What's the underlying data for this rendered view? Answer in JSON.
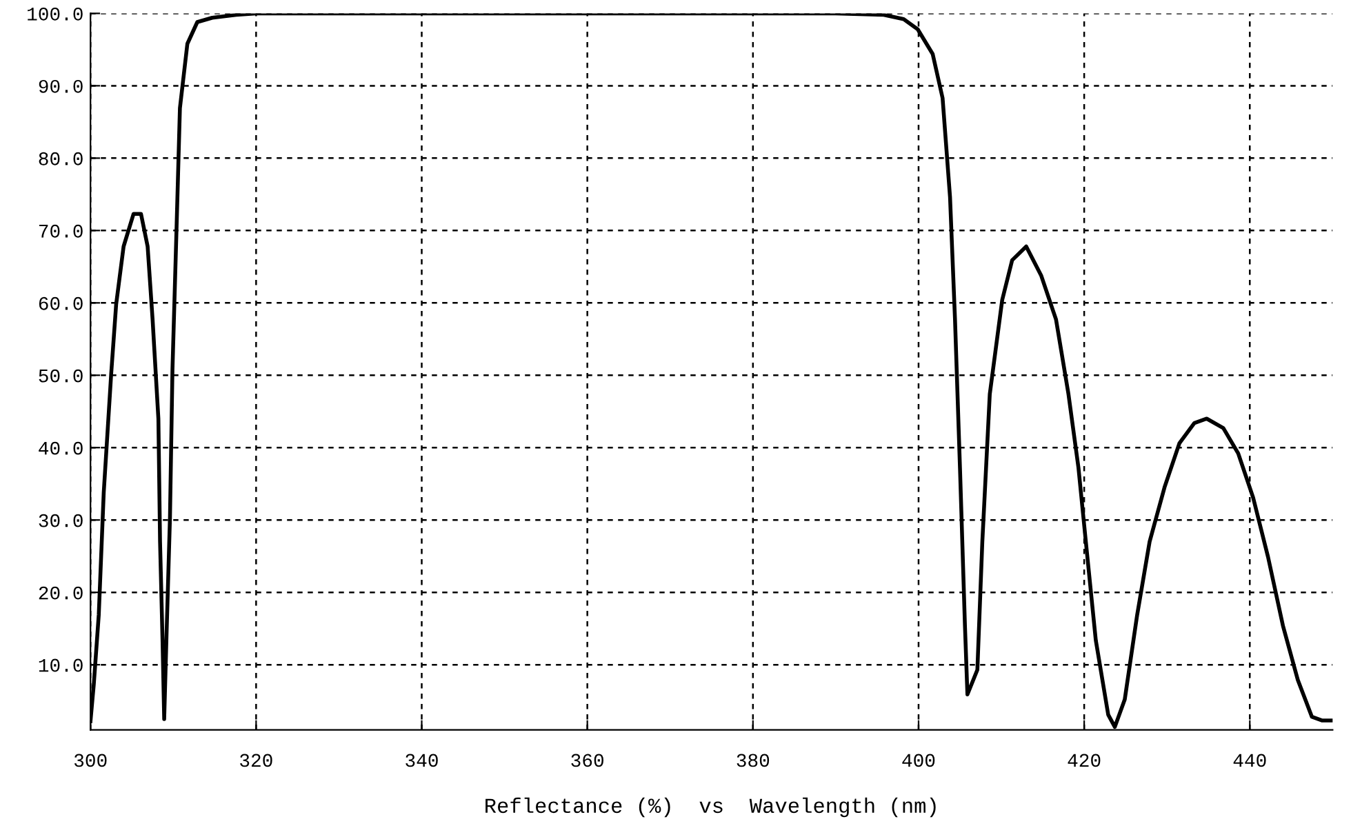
{
  "chart_data": {
    "type": "line",
    "xlabel": "Reflectance (%)  vs  Wavelength (nm)",
    "series": [
      {
        "color": "#000000",
        "x": [
          300,
          300.4,
          301,
          301.6,
          302.5,
          303.1,
          304,
          305.2,
          306.1,
          306.9,
          307.5,
          308.2,
          308.4,
          308.7,
          308.9,
          309.2,
          309.6,
          309.9,
          310.4,
          310.8,
          311.7,
          312.9,
          314.7,
          317.6,
          320,
          340,
          360,
          380,
          390,
          395.8,
          398.2,
          399.9,
          401.7,
          402.9,
          403.8,
          404.4,
          405,
          405.6,
          405.9,
          407.1,
          407.7,
          408.6,
          410.1,
          411.3,
          413,
          414.8,
          416.6,
          418.1,
          419.3,
          420.2,
          421.4,
          422.9,
          423.7,
          424.9,
          426.4,
          427.9,
          429.7,
          431.5,
          433.3,
          434.8,
          436.8,
          438.6,
          440.4,
          442.2,
          444,
          445.8,
          447.5,
          448.7,
          450
        ],
        "values": [
          2.2,
          7.3,
          16.9,
          33.8,
          50.2,
          59.8,
          67.8,
          72.3,
          72.3,
          67.8,
          57.7,
          44,
          27,
          13.4,
          2.5,
          14.8,
          30.4,
          50.8,
          70.6,
          86.9,
          95.8,
          98.8,
          99.4,
          99.8,
          100,
          100,
          100,
          100,
          100,
          99.8,
          99.2,
          97.8,
          94.4,
          88.3,
          74.6,
          57.7,
          37.2,
          15.4,
          5.9,
          9.3,
          27,
          47.4,
          60.4,
          65.9,
          67.8,
          63.8,
          57.7,
          47.4,
          37.3,
          27,
          13.4,
          3.1,
          1.4,
          5.2,
          16.9,
          27,
          34.5,
          40.6,
          43.4,
          44,
          42.7,
          39.2,
          33.1,
          24.9,
          15.4,
          7.9,
          2.8,
          2.3,
          2.3
        ]
      }
    ],
    "xlim": [
      300,
      450
    ],
    "xticks": [
      300,
      320,
      340,
      360,
      380,
      400,
      420,
      440
    ],
    "ylim": [
      1,
      100
    ],
    "yticks": [
      {
        "value": 10,
        "label": "10.0"
      },
      {
        "value": 20,
        "label": "20.0"
      },
      {
        "value": 30,
        "label": "30.0"
      },
      {
        "value": 40,
        "label": "40.0"
      },
      {
        "value": 50,
        "label": "50.0"
      },
      {
        "value": 60,
        "label": "60.0"
      },
      {
        "value": 70,
        "label": "70.0"
      },
      {
        "value": 80,
        "label": "80.0"
      },
      {
        "value": 90,
        "label": "90.0"
      },
      {
        "value": 100,
        "label": "100.0"
      }
    ],
    "grid": true,
    "line_style": "solid",
    "marker": "none"
  }
}
